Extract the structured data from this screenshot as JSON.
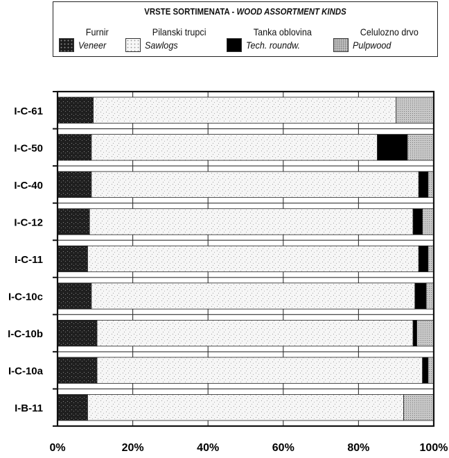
{
  "legend": {
    "title_hr": "VRSTE SORTIMENATA - ",
    "title_en": "WOOD ASSORTMENT KINDS",
    "items": [
      {
        "hr": "Furnir",
        "en": "Veneer",
        "color": "#222222",
        "pattern": "dark-speckle"
      },
      {
        "hr": "Pilanski trupci",
        "en": "Sawlogs",
        "color": "#f4f4f4",
        "pattern": "light-speckle"
      },
      {
        "hr": "Tanka oblovina",
        "en": "Tech. roundw.",
        "color": "#000000",
        "pattern": "solid"
      },
      {
        "hr": "Celulozno drvo",
        "en": "Pulpwood",
        "color": "#b0b0b0",
        "pattern": "gray-stipple"
      }
    ]
  },
  "chart_data": {
    "type": "bar",
    "orientation": "horizontal",
    "stacked": true,
    "categories": [
      "I-C-61",
      "I-C-50",
      "I-C-40",
      "I-C-12",
      "I-C-11",
      "I-C-10c",
      "I-C-10b",
      "I-C-10a",
      "I-B-11"
    ],
    "series": [
      {
        "name": "Furnir / Veneer",
        "values": [
          9.5,
          9,
          9,
          8.5,
          8,
          9,
          10.5,
          10.5,
          8
        ]
      },
      {
        "name": "Pilanski trupci / Sawlogs",
        "values": [
          80.5,
          76,
          87,
          86,
          88,
          86,
          84,
          86.5,
          84
        ]
      },
      {
        "name": "Tanka oblovina / Tech. roundw.",
        "values": [
          0,
          8,
          2.5,
          2.5,
          2.5,
          3,
          1,
          1.5,
          0
        ]
      },
      {
        "name": "Celulozno drvo / Pulpwood",
        "values": [
          10,
          7,
          1.5,
          3,
          1.5,
          2,
          4.5,
          1.5,
          8
        ]
      }
    ],
    "xlim": [
      0,
      100
    ],
    "xticks": [
      "0%",
      "20%",
      "40%",
      "60%",
      "80%",
      "100%"
    ],
    "grid": true,
    "legend_position": "top"
  }
}
